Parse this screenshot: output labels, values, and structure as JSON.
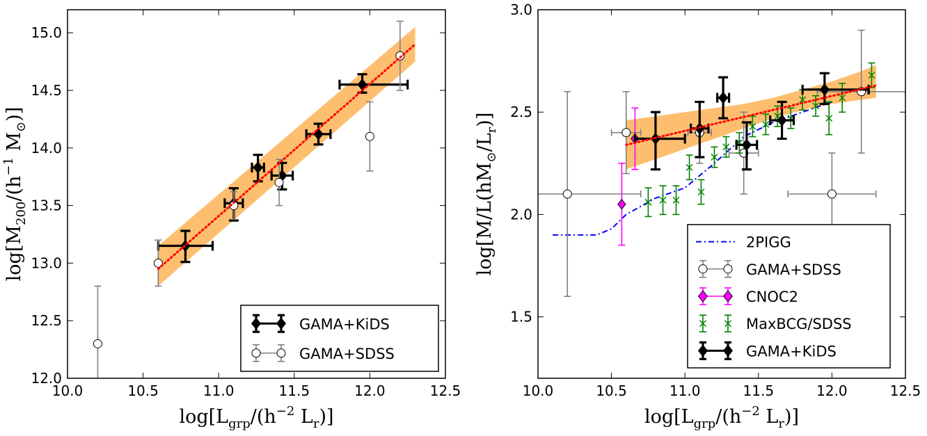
{
  "chart_data": [
    {
      "type": "scatter",
      "title": "",
      "xlabel": "log[L_grp/(h^-2 L_r⊙)]",
      "ylabel": "log[M_200/(h^-1 M⊙)]",
      "xlabel_parts": {
        "main": "log[L",
        "sub": "grp",
        "mid": "/(h",
        "sup": "−2",
        "unit": " L",
        "unitsub": "r",
        "end": ")]"
      },
      "ylabel_parts": {
        "main": "log[M",
        "sub": "200",
        "mid": "/(h",
        "sup": "−1",
        "unit": " M",
        "unitsub": "⊙",
        "end": ")]"
      },
      "xlim": [
        10.0,
        12.5
      ],
      "ylim": [
        12.0,
        15.2
      ],
      "xticks": [
        "10.0",
        "10.5",
        "11.0",
        "11.5",
        "12.0",
        "12.5"
      ],
      "yticks": [
        "12.0",
        "12.5",
        "13.0",
        "13.5",
        "14.0",
        "14.5",
        "15.0"
      ],
      "xtick_values": [
        10.0,
        10.5,
        11.0,
        11.5,
        12.0,
        12.5
      ],
      "ytick_values": [
        12.0,
        12.5,
        13.0,
        13.5,
        14.0,
        14.5,
        15.0
      ],
      "legend_position": "lower-right",
      "band": {
        "x": [
          10.6,
          12.3
        ],
        "lower_at_xmin": 12.8,
        "upper_at_xmin": 13.15,
        "lower_at_xmax": 14.75,
        "upper_at_xmax": 15.05,
        "color": "#fdbf6f"
      },
      "fit_line": {
        "x": [
          10.6,
          12.3
        ],
        "y": [
          12.95,
          14.9
        ],
        "color": "#ff0000",
        "style": "dotted"
      },
      "series": [
        {
          "name": "GAMA+KiDS",
          "marker": "diamond",
          "color": "#000000",
          "points": [
            {
              "x": 10.78,
              "y": 13.15,
              "xerr": [
                0.18,
                0.18
              ],
              "yerr": [
                0.14,
                0.13
              ]
            },
            {
              "x": 11.1,
              "y": 13.52,
              "xerr": [
                0.06,
                0.06
              ],
              "yerr": [
                0.15,
                0.13
              ]
            },
            {
              "x": 11.26,
              "y": 13.83,
              "xerr": [
                0.04,
                0.04
              ],
              "yerr": [
                0.12,
                0.11
              ]
            },
            {
              "x": 11.42,
              "y": 13.76,
              "xerr": [
                0.07,
                0.07
              ],
              "yerr": [
                0.12,
                0.11
              ]
            },
            {
              "x": 11.66,
              "y": 14.12,
              "xerr": [
                0.08,
                0.08
              ],
              "yerr": [
                0.09,
                0.09
              ]
            },
            {
              "x": 11.95,
              "y": 14.55,
              "xerr": [
                0.15,
                0.3
              ],
              "yerr": [
                0.07,
                0.09
              ]
            }
          ]
        },
        {
          "name": "GAMA+SDSS",
          "marker": "circle-open",
          "color": "#808080",
          "points": [
            {
              "x": 10.2,
              "y": 12.3,
              "xerr": [
                0,
                0
              ],
              "yerr": [
                0.5,
                0.5
              ]
            },
            {
              "x": 10.6,
              "y": 13.0,
              "xerr": [
                0,
                0
              ],
              "yerr": [
                0.2,
                0.2
              ]
            },
            {
              "x": 11.1,
              "y": 13.5,
              "xerr": [
                0,
                0
              ],
              "yerr": [
                0.12,
                0.12
              ]
            },
            {
              "x": 11.4,
              "y": 13.7,
              "xerr": [
                0,
                0
              ],
              "yerr": [
                0.2,
                0.2
              ]
            },
            {
              "x": 12.0,
              "y": 14.1,
              "xerr": [
                0,
                0
              ],
              "yerr": [
                0.3,
                0.3
              ]
            },
            {
              "x": 12.2,
              "y": 14.8,
              "xerr": [
                0,
                0
              ],
              "yerr": [
                0.3,
                0.3
              ]
            }
          ]
        }
      ]
    },
    {
      "type": "scatter",
      "title": "",
      "xlabel": "log[L_grp/(h^-2 L_r⊙)]",
      "ylabel": "log[M/L(hM⊙/L_r⊙)]",
      "xlabel_parts": {
        "main": "log[L",
        "sub": "grp",
        "mid": "/(h",
        "sup": "−2",
        "unit": " L",
        "unitsub": "r",
        "end": ")]"
      },
      "ylabel_parts": {
        "main": "log[M/L(hM",
        "sub": "⊙",
        "mid": "/L",
        "sup": "",
        "unit": "",
        "unitsub": "r",
        "end": ")]"
      },
      "xlim": [
        10.0,
        12.5
      ],
      "ylim": [
        1.2,
        3.0
      ],
      "xticks": [
        "10.0",
        "10.5",
        "11.0",
        "11.5",
        "12.0",
        "12.5"
      ],
      "yticks": [
        "1.5",
        "2.0",
        "2.5",
        "3.0"
      ],
      "xtick_values": [
        10.0,
        10.5,
        11.0,
        11.5,
        12.0,
        12.5
      ],
      "ytick_values": [
        1.5,
        2.0,
        2.5,
        3.0
      ],
      "legend_position": "lower-right",
      "band": {
        "x": [
          10.6,
          10.8,
          11.0,
          11.2,
          11.4,
          11.6,
          11.8,
          12.0,
          12.2,
          12.3
        ],
        "lower": [
          2.22,
          2.27,
          2.32,
          2.37,
          2.42,
          2.47,
          2.51,
          2.54,
          2.56,
          2.57
        ],
        "upper": [
          2.46,
          2.48,
          2.5,
          2.52,
          2.54,
          2.57,
          2.61,
          2.65,
          2.7,
          2.73
        ],
        "color": "#fdbf6f"
      },
      "fit_line": {
        "x": [
          10.6,
          12.3
        ],
        "y": [
          2.34,
          2.63
        ],
        "color": "#ff0000",
        "style": "dotted"
      },
      "series": [
        {
          "name": "2PIGG",
          "type": "line",
          "style": "dashdot",
          "color": "#0000ff",
          "x": [
            10.1,
            10.4,
            10.5,
            10.6,
            10.8,
            11.0,
            11.2,
            11.4,
            11.6,
            11.8,
            12.0
          ],
          "y": [
            1.9,
            1.9,
            1.93,
            2.0,
            2.08,
            2.13,
            2.25,
            2.38,
            2.45,
            2.5,
            2.55
          ]
        },
        {
          "name": "GAMA+SDSS",
          "marker": "circle-open",
          "color": "#808080",
          "points": [
            {
              "x": 10.2,
              "y": 2.1,
              "xerr": [
                0.5,
                0.5
              ],
              "yerr": [
                0.5,
                0.5
              ]
            },
            {
              "x": 10.6,
              "y": 2.4,
              "xerr": [
                0.1,
                0.1
              ],
              "yerr": [
                0.2,
                0.2
              ]
            },
            {
              "x": 11.1,
              "y": 2.4,
              "xerr": [
                0.08,
                0.08
              ],
              "yerr": [
                0.15,
                0.15
              ]
            },
            {
              "x": 11.4,
              "y": 2.3,
              "xerr": [
                0.1,
                0.1
              ],
              "yerr": [
                0.2,
                0.2
              ]
            },
            {
              "x": 12.0,
              "y": 2.1,
              "xerr": [
                0.3,
                0.3
              ],
              "yerr": [
                0.2,
                0.2
              ]
            },
            {
              "x": 12.2,
              "y": 2.6,
              "xerr": [
                0.3,
                0.3
              ],
              "yerr": [
                0.3,
                0.3
              ]
            }
          ]
        },
        {
          "name": "CNOC2",
          "marker": "diamond",
          "color": "#ff00ff",
          "points": [
            {
              "x": 10.57,
              "y": 2.05,
              "xerr": [
                0,
                0
              ],
              "yerr": [
                0.2,
                0.2
              ]
            },
            {
              "x": 10.66,
              "y": 2.37,
              "xerr": [
                0,
                0
              ],
              "yerr": [
                0.15,
                0.15
              ]
            }
          ]
        },
        {
          "name": "MaxBCG/SDSS",
          "marker": "x",
          "color": "#008000",
          "points": [
            {
              "x": 10.75,
              "y": 2.06,
              "yerr": [
                0.07,
                0.07
              ]
            },
            {
              "x": 10.85,
              "y": 2.07,
              "yerr": [
                0.07,
                0.07
              ]
            },
            {
              "x": 10.94,
              "y": 2.07,
              "yerr": [
                0.07,
                0.07
              ]
            },
            {
              "x": 11.03,
              "y": 2.23,
              "yerr": [
                0.06,
                0.06
              ]
            },
            {
              "x": 11.11,
              "y": 2.11,
              "yerr": [
                0.06,
                0.06
              ]
            },
            {
              "x": 11.2,
              "y": 2.28,
              "yerr": [
                0.05,
                0.05
              ]
            },
            {
              "x": 11.28,
              "y": 2.33,
              "yerr": [
                0.05,
                0.05
              ]
            },
            {
              "x": 11.37,
              "y": 2.35,
              "yerr": [
                0.05,
                0.05
              ]
            },
            {
              "x": 11.46,
              "y": 2.43,
              "yerr": [
                0.05,
                0.05
              ]
            },
            {
              "x": 11.55,
              "y": 2.44,
              "yerr": [
                0.05,
                0.05
              ]
            },
            {
              "x": 11.63,
              "y": 2.48,
              "yerr": [
                0.05,
                0.05
              ]
            },
            {
              "x": 11.72,
              "y": 2.47,
              "yerr": [
                0.05,
                0.05
              ]
            },
            {
              "x": 11.8,
              "y": 2.56,
              "yerr": [
                0.05,
                0.05
              ]
            },
            {
              "x": 11.89,
              "y": 2.53,
              "yerr": [
                0.05,
                0.05
              ]
            },
            {
              "x": 11.98,
              "y": 2.47,
              "yerr": [
                0.08,
                0.08
              ]
            },
            {
              "x": 12.07,
              "y": 2.57,
              "yerr": [
                0.07,
                0.07
              ]
            },
            {
              "x": 12.27,
              "y": 2.68,
              "yerr": [
                0.06,
                0.06
              ]
            }
          ]
        },
        {
          "name": "GAMA+KiDS",
          "marker": "diamond",
          "color": "#000000",
          "points": [
            {
              "x": 10.8,
              "y": 2.37,
              "xerr": [
                0.14,
                0.2
              ],
              "yerr": [
                0.15,
                0.13
              ]
            },
            {
              "x": 11.1,
              "y": 2.42,
              "xerr": [
                0.06,
                0.06
              ],
              "yerr": [
                0.14,
                0.13
              ]
            },
            {
              "x": 11.26,
              "y": 2.57,
              "xerr": [
                0.04,
                0.04
              ],
              "yerr": [
                0.1,
                0.1
              ]
            },
            {
              "x": 11.42,
              "y": 2.34,
              "xerr": [
                0.07,
                0.07
              ],
              "yerr": [
                0.12,
                0.11
              ]
            },
            {
              "x": 11.66,
              "y": 2.46,
              "xerr": [
                0.08,
                0.08
              ],
              "yerr": [
                0.09,
                0.09
              ]
            },
            {
              "x": 11.95,
              "y": 2.61,
              "xerr": [
                0.15,
                0.3
              ],
              "yerr": [
                0.07,
                0.08
              ]
            }
          ]
        }
      ]
    }
  ]
}
